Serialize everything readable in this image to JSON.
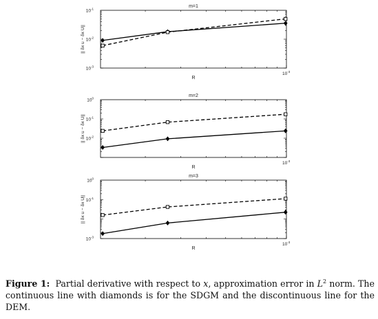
{
  "chart_data": [
    {
      "type": "line",
      "title": "m=1",
      "xlabel": "R",
      "ylabel": "|| δx u − δx U||",
      "xscale": "log",
      "yscale": "log",
      "xlim": [
        0.00012,
        0.001
      ],
      "ylim": [
        0.001,
        0.1
      ],
      "xticks": [
        {
          "value": 0.001,
          "base": "10",
          "exp": "-3"
        }
      ],
      "yticks": [
        {
          "value": 0.1,
          "base": "10",
          "exp": "-1"
        },
        {
          "value": 0.01,
          "base": "10",
          "exp": "-2"
        },
        {
          "value": 0.001,
          "base": "10",
          "exp": "-3"
        }
      ],
      "x": [
        0.000123,
        0.000258,
        0.00099
      ],
      "series": [
        {
          "marker": "diamond",
          "dash": "solid",
          "values": [
            0.0091,
            0.0182,
            0.0358
          ]
        },
        {
          "marker": "square",
          "dash": "dashed",
          "values": [
            0.006,
            0.0175,
            0.0505
          ]
        }
      ]
    },
    {
      "type": "line",
      "title": "m=2",
      "xlabel": "R",
      "ylabel": "|| δx u − δx U||",
      "xscale": "log",
      "yscale": "log",
      "xlim": [
        0.00012,
        0.001
      ],
      "ylim": [
        0.001,
        1
      ],
      "xticks": [
        {
          "value": 0.001,
          "base": "10",
          "exp": "-3"
        }
      ],
      "yticks": [
        {
          "value": 1,
          "base": "10",
          "exp": "0"
        },
        {
          "value": 0.1,
          "base": "10",
          "exp": "-1"
        },
        {
          "value": 0.01,
          "base": "10",
          "exp": "-2"
        }
      ],
      "x": [
        0.000123,
        0.000258,
        0.00099
      ],
      "series": [
        {
          "marker": "diamond",
          "dash": "solid",
          "values": [
            0.0033,
            0.0093,
            0.024
          ]
        },
        {
          "marker": "square",
          "dash": "dashed",
          "values": [
            0.024,
            0.068,
            0.175
          ]
        }
      ]
    },
    {
      "type": "line",
      "title": "m=3",
      "xlabel": "R",
      "ylabel": "|| δx u − δx U||",
      "xscale": "log",
      "yscale": "log",
      "xlim": [
        0.00012,
        0.001
      ],
      "ylim": [
        0.001,
        1
      ],
      "xticks": [
        {
          "value": 0.001,
          "base": "10",
          "exp": "-3"
        }
      ],
      "yticks": [
        {
          "value": 1,
          "base": "10",
          "exp": "0"
        },
        {
          "value": 0.1,
          "base": "10",
          "exp": "-1"
        },
        {
          "value": 0.001,
          "base": "10",
          "exp": "-3"
        }
      ],
      "x": [
        0.000123,
        0.000258,
        0.00099
      ],
      "series": [
        {
          "marker": "diamond",
          "dash": "solid",
          "values": [
            0.0018,
            0.0063,
            0.0225
          ]
        },
        {
          "marker": "square",
          "dash": "dashed",
          "values": [
            0.016,
            0.042,
            0.112
          ]
        }
      ]
    }
  ],
  "caption": {
    "label": "Figure 1:",
    "text1": "Partial derivative with respect to ",
    "var_x": "x",
    "text2": ", approximation error in ",
    "var_L": "L",
    "sup": "2",
    "text3": " norm. The continuous line with diamonds is for the SDGM and the discontinuous line for the DEM."
  }
}
